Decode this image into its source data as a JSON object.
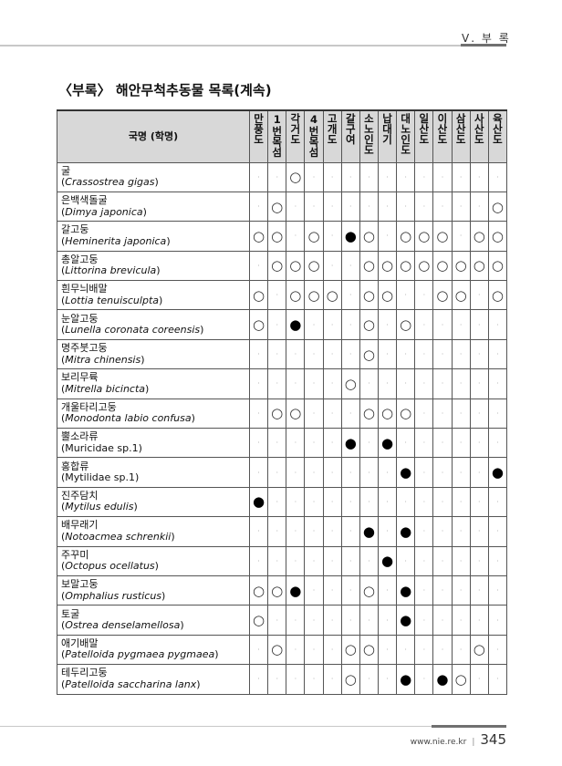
{
  "header": {
    "section": "Ⅴ. 부 록"
  },
  "title": "〈부록〉 해안무척추동물 목록(계속)",
  "table": {
    "name_header": "국명 (학명)",
    "columns": [
      "만풍도",
      "1번목섬",
      "각거도",
      "4번목섬",
      "고개도",
      "갈구여",
      "소노인도",
      "납대기",
      "대노인도",
      "일산도",
      "이산도",
      "삼산도",
      "사산도",
      "육산도"
    ],
    "legend_symbols": {
      "o": "○",
      "x": "●",
      ".": "·"
    },
    "rows": [
      {
        "kr": "굴",
        "sci": "Crassostrea gigas",
        "paren_italic": true,
        "cells": "..o..........."
      },
      {
        "kr": "은백색돌굴",
        "sci": "Dimya japonica",
        "paren_italic": true,
        "cells": ".o...........o"
      },
      {
        "kr": "갈고둥",
        "sci": "Heminerita japonica",
        "paren_italic": true,
        "cells": "oo.o.xo.ooo.oo"
      },
      {
        "kr": "총알고둥",
        "sci": "Littorina brevicula",
        "paren_italic": true,
        "cells": ".ooo..oooooooo"
      },
      {
        "kr": "흰무늬배말",
        "sci": "Lottia tenuisculpta",
        "paren_italic": true,
        "cells": "o.ooo.oo..oo.o"
      },
      {
        "kr": "눈알고둥",
        "sci": "Lunella coronata coreensis",
        "paren_italic": true,
        "cells": "o.x...o.o....."
      },
      {
        "kr": "명주붓고둥",
        "sci": "Mitra chinensis",
        "paren_italic": true,
        "cells": "......o......."
      },
      {
        "kr": "보리무륙",
        "sci": "Mitrella bicincta",
        "paren_italic": true,
        "cells": ".....o........"
      },
      {
        "kr": "개울타리고둥",
        "sci": "Monodonta labio confusa",
        "paren_italic": true,
        "cells": ".oo...ooo....."
      },
      {
        "kr": "뿔소라류",
        "sci": "Muricidae sp.1",
        "paren_italic": false,
        "cells": ".....x.x......"
      },
      {
        "kr": "홍합류",
        "sci": "Mytilidae sp.1",
        "paren_italic": false,
        "cells": "........x....x"
      },
      {
        "kr": "진주담치",
        "sci": "Mytilus edulis",
        "paren_italic": true,
        "cells": "x............."
      },
      {
        "kr": "배무래기",
        "sci": "Notoacmea schrenkii",
        "paren_italic": true,
        "cells": "......x.x....."
      },
      {
        "kr": "주꾸미",
        "sci": "Octopus ocellatus",
        "paren_italic": true,
        "cells": ".......x......"
      },
      {
        "kr": "보말고둥",
        "sci": "Omphalius rusticus",
        "paren_italic": true,
        "cells": "oox...o.x....."
      },
      {
        "kr": "토굴",
        "sci": "Ostrea denselamellosa",
        "paren_italic": true,
        "cells": "o.......x....."
      },
      {
        "kr": "애기배말",
        "sci": "Patelloida pygmaea pygmaea",
        "paren_italic": true,
        "cells": ".o...oo.....o."
      },
      {
        "kr": "테두리고둥",
        "sci": "Patelloida saccharina lanx",
        "paren_italic": true,
        "cells": ".....o..x.xo.."
      }
    ]
  },
  "footer": {
    "url": "www.nie.re.kr",
    "separator": "|",
    "page": "345"
  }
}
